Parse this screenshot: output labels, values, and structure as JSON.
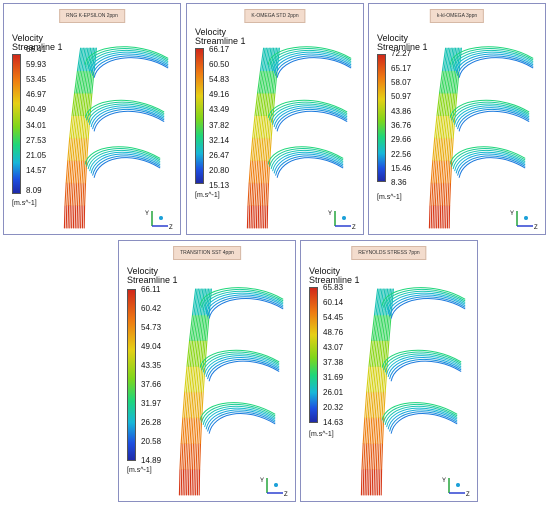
{
  "panels": [
    {
      "title": "RNG K-EPSILON 2ppn",
      "legend_title_1": "Velocity",
      "legend_title_2": "Streamline 1",
      "ticks": [
        "66.41",
        "59.93",
        "53.45",
        "46.97",
        "40.49",
        "34.01",
        "27.53",
        "21.05",
        "14.57",
        "8.09"
      ],
      "unit": "[m.s^-1]"
    },
    {
      "title": "K-OMEGA STD 2ppn",
      "legend_title_1": "Velocity",
      "legend_title_2": "Streamline 1",
      "ticks": [
        "66.17",
        "60.50",
        "54.83",
        "49.16",
        "43.49",
        "37.82",
        "32.14",
        "26.47",
        "20.80",
        "15.13"
      ],
      "unit": "[m.s^-1]"
    },
    {
      "title": "k-kl-OMEGA 3ppn",
      "legend_title_1": "Velocity",
      "legend_title_2": "Streamline 1",
      "ticks": [
        "72.27",
        "65.17",
        "58.07",
        "50.97",
        "43.86",
        "36.76",
        "29.66",
        "22.56",
        "15.46",
        "8.36"
      ],
      "unit": "[m.s^-1]"
    },
    {
      "title": "TRANSITION SST 4ppn",
      "legend_title_1": "Velocity",
      "legend_title_2": "Streamline 1",
      "ticks": [
        "66.11",
        "60.42",
        "54.73",
        "49.04",
        "43.35",
        "37.66",
        "31.97",
        "26.28",
        "20.58",
        "14.89"
      ],
      "unit": "[m.s^-1]"
    },
    {
      "title": "REYNOLDS STRESS 7ppn",
      "legend_title_1": "Velocity",
      "legend_title_2": "Streamline 1",
      "ticks": [
        "65.83",
        "60.14",
        "54.45",
        "48.76",
        "43.07",
        "37.38",
        "31.69",
        "26.01",
        "20.32",
        "14.63"
      ],
      "unit": "[m.s^-1]"
    }
  ],
  "axis_labels": {
    "y": "Y",
    "z": "Z"
  }
}
